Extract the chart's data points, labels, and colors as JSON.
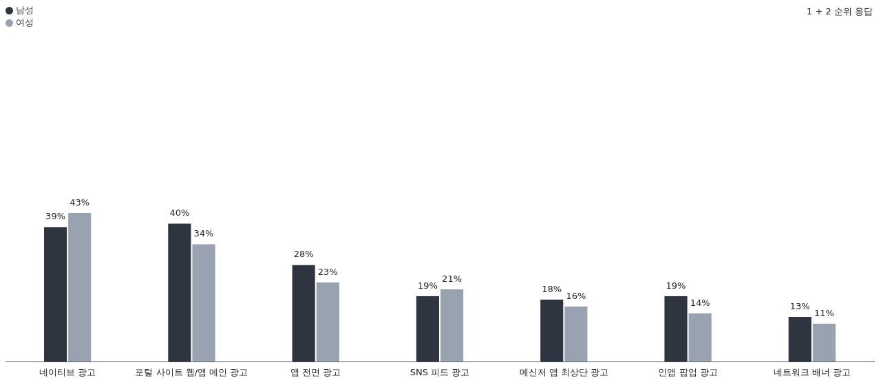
{
  "chart_data": {
    "type": "bar",
    "categories": [
      "네이티브 광고",
      "포털 사이트 웹/앱 메인 광고",
      "앱 전면 광고",
      "SNS 피드 광고",
      "메신저 앱 최상단 광고",
      "인앱 팝업 광고",
      "네트워크 배너 광고"
    ],
    "series": [
      {
        "name": "남성",
        "color": "#2e3440",
        "values": [
          39,
          40,
          28,
          19,
          18,
          19,
          13
        ],
        "value_labels": [
          "39%",
          "40%",
          "28%",
          "19%",
          "18%",
          "19%",
          "13%"
        ]
      },
      {
        "name": "여성",
        "color": "#98a2b1",
        "values": [
          43,
          34,
          23,
          21,
          16,
          14,
          11
        ],
        "value_labels": [
          "43%",
          "34%",
          "23%",
          "21%",
          "16%",
          "14%",
          "11%"
        ]
      }
    ],
    "legend": "top left",
    "grid": false,
    "annotations": [
      "1 + 2 순위 응답"
    ]
  }
}
